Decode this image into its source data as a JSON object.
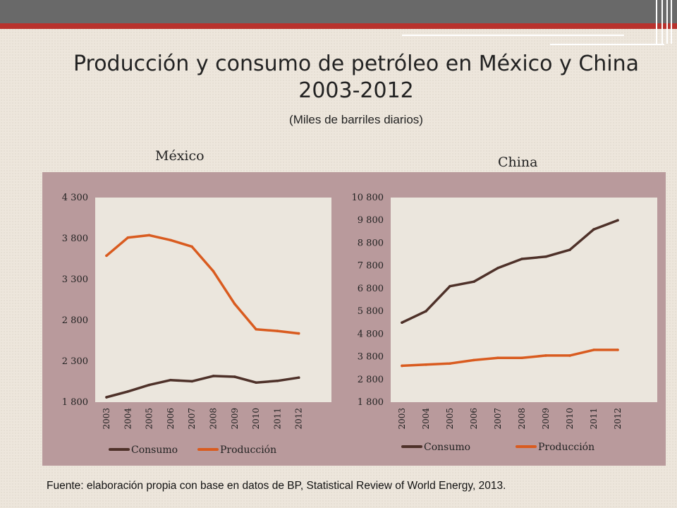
{
  "slide": {
    "title_line1": "Producción y consumo de petróleo en México y China",
    "title_line2": "2003-2012",
    "subtitle": "(Miles de barriles diarios)",
    "source": "Fuente: elaboración propia con base en datos de BP, Statistical Review of World Energy, 2013."
  },
  "colors": {
    "consumo": "#4e3129",
    "produccion": "#d95b1f",
    "plot_bg": "#ebe6dd",
    "panel_bg": "#b99a9c",
    "header_gray": "#696969",
    "header_red": "#b8322d"
  },
  "chart_data": [
    {
      "type": "line",
      "title": "México",
      "categories": [
        "2003",
        "2004",
        "2005",
        "2006",
        "2007",
        "2008",
        "2009",
        "2010",
        "2011",
        "2012"
      ],
      "ylim": [
        1800,
        4300
      ],
      "yticks": [
        1800,
        2300,
        2800,
        3300,
        3800,
        4300
      ],
      "ytick_labels": [
        "1 800",
        "2 300",
        "2 800",
        "3 300",
        "3 800",
        "4 300"
      ],
      "series": [
        {
          "name": "Consumo",
          "values": [
            1860,
            1930,
            2010,
            2070,
            2055,
            2120,
            2110,
            2040,
            2060,
            2100
          ]
        },
        {
          "name": "Producción",
          "values": [
            3590,
            3810,
            3840,
            3780,
            3700,
            3400,
            3000,
            2690,
            2670,
            2640
          ]
        }
      ],
      "legend": "bottom",
      "grid": false
    },
    {
      "type": "line",
      "title": "China",
      "categories": [
        "2003",
        "2004",
        "2005",
        "2006",
        "2007",
        "2008",
        "2009",
        "2010",
        "2011",
        "2012"
      ],
      "ylim": [
        1800,
        10800
      ],
      "yticks": [
        1800,
        2800,
        3800,
        4800,
        5800,
        6800,
        7800,
        8800,
        9800,
        10800
      ],
      "ytick_labels": [
        "1 800",
        "2 800",
        "3 800",
        "4 800",
        "5 800",
        "6 800",
        "7 800",
        "8 800",
        "9 800",
        "10 800"
      ],
      "series": [
        {
          "name": "Consumo",
          "values": [
            5300,
            5800,
            6900,
            7100,
            7700,
            8100,
            8200,
            8500,
            9400,
            9800
          ]
        },
        {
          "name": "Producción",
          "values": [
            3400,
            3450,
            3500,
            3650,
            3750,
            3750,
            3850,
            3850,
            4100,
            4100
          ]
        }
      ],
      "legend": "bottom",
      "grid": false
    }
  ]
}
